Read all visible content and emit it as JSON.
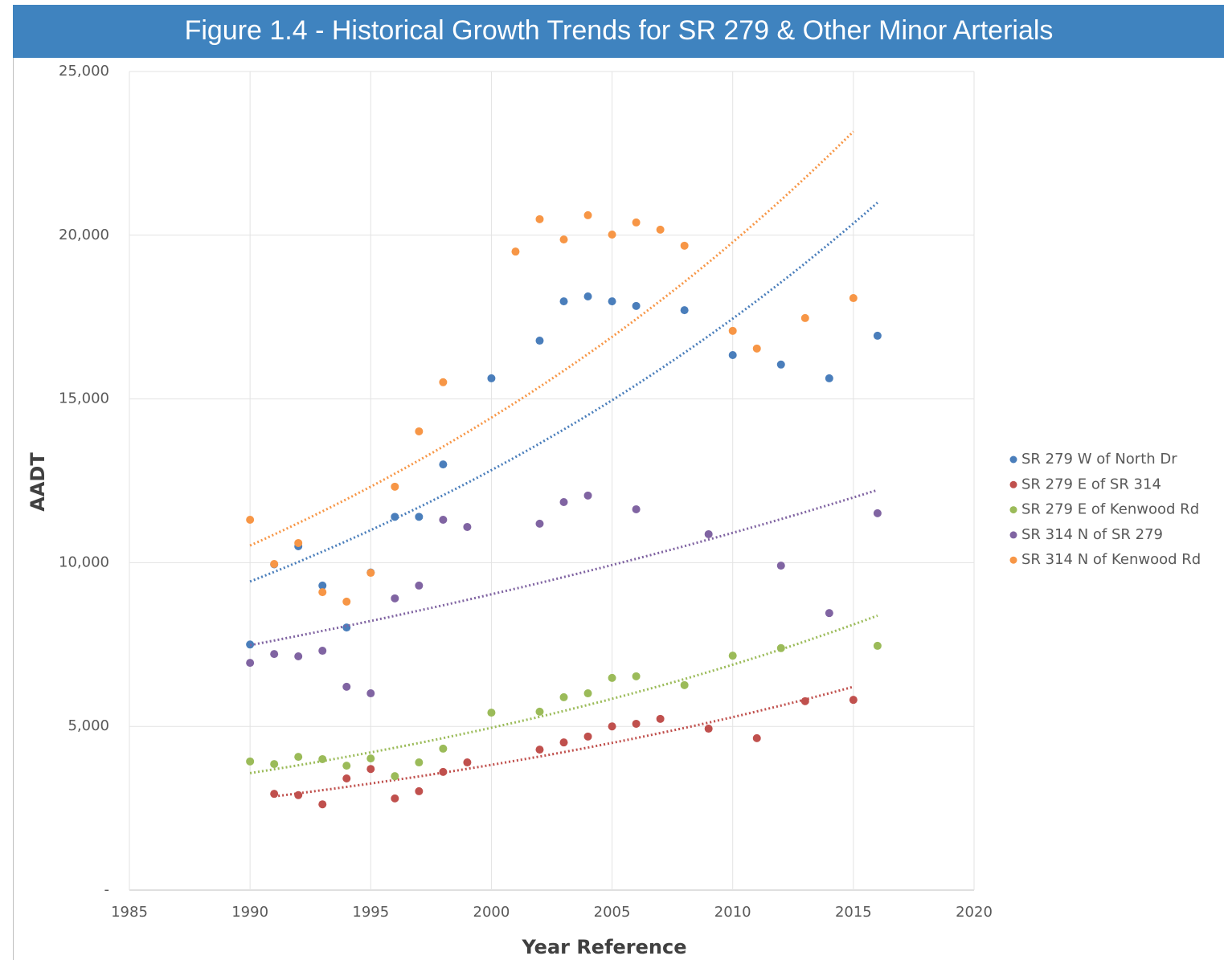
{
  "chart_data": {
    "type": "scatter",
    "title": "Figure 1.4 - Historical Growth Trends for SR 279 & Other Minor Arterials",
    "x_label": "Year Reference",
    "y_label": "AADT",
    "xlim": [
      1985,
      2020
    ],
    "xticks": [
      1985,
      1990,
      1995,
      2000,
      2005,
      2010,
      2015,
      2020
    ],
    "ylim": [
      0,
      25000
    ],
    "yticks": [
      {
        "value": 0,
        "label": "-"
      },
      {
        "value": 5000,
        "label": "5,000"
      },
      {
        "value": 10000,
        "label": "10,000"
      },
      {
        "value": 15000,
        "label": "15,000"
      },
      {
        "value": 20000,
        "label": "20,000"
      },
      {
        "value": 25000,
        "label": "25,000"
      }
    ],
    "grid": true,
    "trendline": "exponential",
    "legend": "right",
    "series": [
      {
        "name": "SR 279 W of North Dr",
        "color": "#4a7ebb",
        "x": [
          1990,
          1991,
          1992,
          1993,
          1994,
          1995,
          1996,
          1997,
          1998,
          2000,
          2002,
          2003,
          2004,
          2005,
          2006,
          2008,
          2010,
          2012,
          2014,
          2016
        ],
        "values": [
          7500,
          9950,
          10500,
          9300,
          8020,
          9700,
          11400,
          11400,
          13000,
          15630,
          16780,
          17980,
          18130,
          17980,
          17840,
          17710,
          16340,
          16050,
          15630,
          16930
        ]
      },
      {
        "name": "SR 279 E of SR 314",
        "color": "#c0504d",
        "x": [
          1991,
          1992,
          1993,
          1994,
          1995,
          1996,
          1997,
          1998,
          1999,
          2002,
          2003,
          2004,
          2005,
          2006,
          2007,
          2009,
          2011,
          2013,
          2015
        ],
        "values": [
          2940,
          2900,
          2620,
          3410,
          3700,
          2800,
          3020,
          3610,
          3900,
          4290,
          4510,
          4690,
          5000,
          5080,
          5230,
          4930,
          4640,
          5770,
          5810
        ]
      },
      {
        "name": "SR 279 E of Kenwood Rd",
        "color": "#9bbb59",
        "x": [
          1990,
          1991,
          1992,
          1993,
          1994,
          1995,
          1996,
          1997,
          1998,
          2000,
          2002,
          2003,
          2004,
          2005,
          2006,
          2008,
          2010,
          2012,
          2016
        ],
        "values": [
          3930,
          3850,
          4070,
          4000,
          3800,
          4020,
          3480,
          3900,
          4320,
          5420,
          5450,
          5890,
          6010,
          6480,
          6530,
          6260,
          7160,
          7390,
          7460
        ]
      },
      {
        "name": "SR 314 N of SR 279",
        "color": "#8064a2",
        "x": [
          1990,
          1991,
          1992,
          1993,
          1994,
          1995,
          1996,
          1997,
          1998,
          1999,
          2002,
          2003,
          2004,
          2006,
          2009,
          2012,
          2014,
          2016
        ],
        "values": [
          6940,
          7210,
          7140,
          7310,
          6210,
          6010,
          8910,
          9300,
          11310,
          11090,
          11190,
          11850,
          12050,
          11630,
          10870,
          9910,
          8460,
          11510
        ]
      },
      {
        "name": "SR 314 N of Kenwood Rd",
        "color": "#f79646",
        "x": [
          1990,
          1991,
          1992,
          1993,
          1994,
          1995,
          1996,
          1997,
          1998,
          2001,
          2002,
          2003,
          2004,
          2005,
          2006,
          2007,
          2008,
          2010,
          2011,
          2013,
          2015
        ],
        "values": [
          11310,
          9960,
          10600,
          9100,
          8810,
          9690,
          12320,
          14010,
          15510,
          19500,
          20490,
          19870,
          20610,
          20020,
          20390,
          20170,
          19680,
          17080,
          16540,
          17470,
          18080
        ]
      }
    ]
  }
}
